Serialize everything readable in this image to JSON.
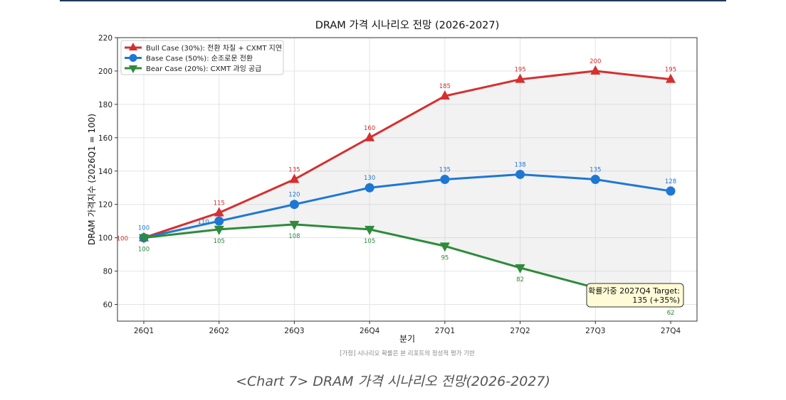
{
  "chart_data": {
    "type": "line",
    "title": "DRAM 가격 시나리오 전망 (2026-2027)",
    "xlabel": "분기",
    "ylabel": "DRAM 가격지수 (2026Q1 = 100)",
    "categories": [
      "26Q1",
      "26Q2",
      "26Q3",
      "26Q4",
      "27Q1",
      "27Q2",
      "27Q3",
      "27Q4"
    ],
    "ylim": [
      50,
      220
    ],
    "yticks": [
      60,
      80,
      100,
      120,
      140,
      160,
      180,
      200,
      220
    ],
    "grid": true,
    "legend_position": "top-left",
    "shaded_between": [
      "Bull Case (30%): 전환 차질 + CXMT 지연",
      "Bear Case (20%): CXMT 과잉 공급"
    ],
    "series": [
      {
        "name": "Bull Case (30%): 전환 차질 + CXMT 지연",
        "color": "#d62f2f",
        "marker": "triangle-up",
        "values": [
          100,
          115,
          135,
          160,
          185,
          195,
          200,
          195
        ]
      },
      {
        "name": "Base Case (50%): 순조로운 전환",
        "color": "#1f77d4",
        "marker": "circle",
        "values": [
          100,
          110,
          120,
          130,
          135,
          138,
          135,
          128
        ]
      },
      {
        "name": "Bear Case (20%): CXMT 과잉 공급",
        "color": "#2e8b3a",
        "marker": "triangle-down",
        "values": [
          100,
          105,
          108,
          105,
          95,
          82,
          70,
          62
        ]
      }
    ],
    "annotation": {
      "line1": "확률가중 2027Q4 Target:",
      "line2": "135 (+35%)"
    },
    "note": "[가정] 시나리오 확률은 본 리포트의 정성적 평가 기반"
  },
  "caption": "<Chart 7> DRAM 가격 시나리오 전망(2026-2027)"
}
